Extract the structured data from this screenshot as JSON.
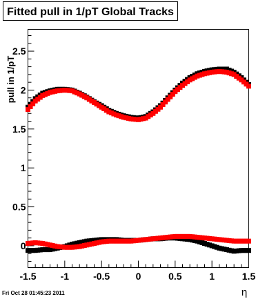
{
  "chart_data": {
    "type": "scatter",
    "title": "Fitted pull in 1/pT  Global Tracks",
    "xlabel": "η",
    "ylabel": "pull in 1/pT",
    "xlim": [
      -1.5,
      1.5
    ],
    "ylim": [
      -0.28,
      2.78
    ],
    "x_ticks": [
      "-1.5",
      "-1",
      "-0.5",
      "0",
      "0.5",
      "1",
      "1.5"
    ],
    "y_ticks": [
      "0",
      "0.5",
      "1",
      "1.5",
      "2",
      "2.5"
    ],
    "timestamp": "Fri Oct 28 01:45:23 2011",
    "grid": false,
    "legend": "none",
    "x": [
      -1.5,
      -1.4,
      -1.3,
      -1.2,
      -1.1,
      -1.0,
      -0.9,
      -0.8,
      -0.7,
      -0.6,
      -0.5,
      -0.4,
      -0.3,
      -0.2,
      -0.1,
      0.0,
      0.1,
      0.2,
      0.3,
      0.4,
      0.5,
      0.6,
      0.7,
      0.8,
      0.9,
      1.0,
      1.1,
      1.2,
      1.3,
      1.4,
      1.5
    ],
    "series": [
      {
        "color": "#000000",
        "values": [
          1.78,
          1.89,
          1.96,
          1.99,
          2.01,
          2.01,
          2.0,
          1.96,
          1.91,
          1.85,
          1.8,
          1.74,
          1.7,
          1.67,
          1.65,
          1.64,
          1.66,
          1.72,
          1.8,
          1.9,
          2.0,
          2.09,
          2.16,
          2.21,
          2.24,
          2.26,
          2.27,
          2.27,
          2.23,
          2.16,
          2.07
        ]
      },
      {
        "color": "#ff0000",
        "values": [
          1.75,
          1.86,
          1.93,
          1.97,
          1.99,
          2.0,
          1.99,
          1.95,
          1.9,
          1.84,
          1.78,
          1.72,
          1.68,
          1.65,
          1.63,
          1.62,
          1.64,
          1.7,
          1.78,
          1.88,
          1.98,
          2.06,
          2.13,
          2.18,
          2.21,
          2.23,
          2.24,
          2.23,
          2.2,
          2.13,
          2.05
        ]
      },
      {
        "color": "#000000",
        "values": [
          -0.06,
          -0.06,
          -0.05,
          -0.05,
          -0.03,
          -0.01,
          0.02,
          0.04,
          0.06,
          0.07,
          0.08,
          0.08,
          0.08,
          0.07,
          0.07,
          0.07,
          0.08,
          0.09,
          0.09,
          0.1,
          0.1,
          0.09,
          0.08,
          0.06,
          0.03,
          0.0,
          -0.03,
          -0.05,
          -0.07,
          -0.06,
          -0.06
        ]
      },
      {
        "color": "#ff0000",
        "values": [
          0.03,
          0.04,
          0.03,
          0.01,
          -0.01,
          -0.02,
          -0.02,
          -0.01,
          0.01,
          0.03,
          0.05,
          0.06,
          0.06,
          0.06,
          0.06,
          0.07,
          0.08,
          0.09,
          0.1,
          0.11,
          0.12,
          0.12,
          0.12,
          0.11,
          0.1,
          0.09,
          0.08,
          0.07,
          0.06,
          0.06,
          0.06
        ]
      }
    ]
  }
}
